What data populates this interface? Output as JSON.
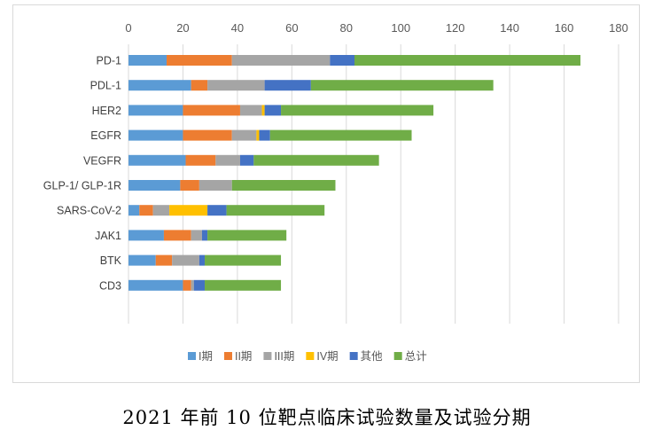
{
  "chart_data": {
    "type": "bar",
    "orientation": "horizontal",
    "stacked": true,
    "title": "2021 年前 10 位靶点临床试验数量及试验分期",
    "xlabel": "",
    "ylabel": "",
    "xlim": [
      0,
      180
    ],
    "xticks": [
      0,
      20,
      40,
      60,
      80,
      100,
      120,
      140,
      160,
      180
    ],
    "grid": true,
    "legend_position": "bottom",
    "categories": [
      "PD-1",
      "PDL-1",
      "HER2",
      "EGFR",
      "VEGFR",
      "GLP-1/ GLP-1R",
      "SARS-CoV-2",
      "JAK1",
      "BTK",
      "CD3"
    ],
    "series": [
      {
        "name": "I期",
        "color": "#5b9bd5",
        "values": [
          14,
          23,
          20,
          20,
          21,
          19,
          4,
          13,
          10,
          20
        ]
      },
      {
        "name": "II期",
        "color": "#ed7d31",
        "values": [
          24,
          6,
          21,
          18,
          11,
          7,
          5,
          10,
          6,
          3
        ]
      },
      {
        "name": "III期",
        "color": "#a5a5a5",
        "values": [
          36,
          21,
          8,
          9,
          9,
          12,
          6,
          4,
          10,
          1
        ]
      },
      {
        "name": "IV期",
        "color": "#ffc000",
        "values": [
          0,
          0,
          1,
          1,
          0,
          0,
          14,
          0,
          0,
          0
        ]
      },
      {
        "name": "其他",
        "color": "#4472c4",
        "values": [
          9,
          17,
          6,
          4,
          5,
          0,
          7,
          2,
          2,
          4
        ]
      },
      {
        "name": "总计",
        "color": "#70ad47",
        "values": [
          83,
          67,
          56,
          52,
          46,
          38,
          36,
          29,
          28,
          28
        ]
      }
    ]
  }
}
